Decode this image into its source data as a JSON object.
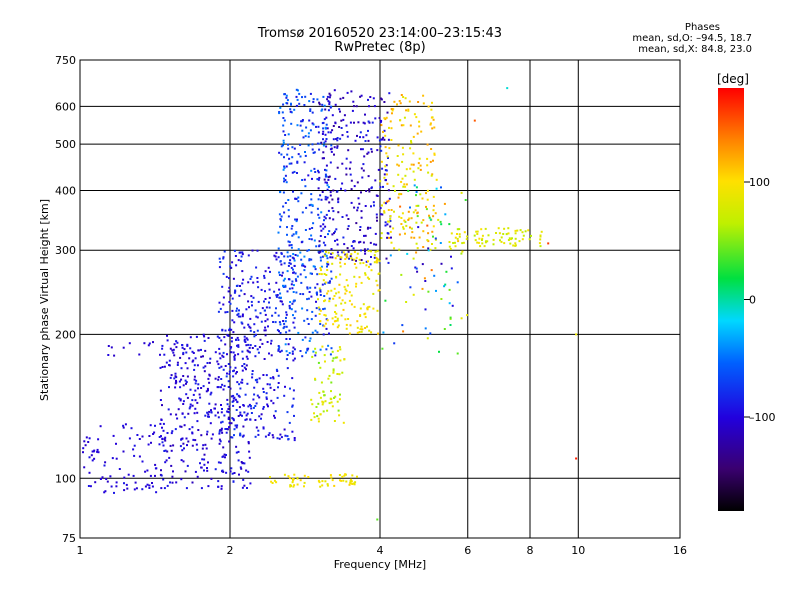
{
  "header": {
    "title_line1": "Tromsø 20160520 23:14:00–23:15:43",
    "title_line2": "RwPretec (8p)"
  },
  "stats": {
    "heading": "Phases",
    "line_o": "mean, sd,O: –94.5, 18.7",
    "line_x": "mean, sd,X:  84.8, 23.0"
  },
  "colorbar": {
    "label": "[deg]",
    "range": [
      -180,
      180
    ],
    "ticks": [
      {
        "value": 100,
        "label": "100"
      },
      {
        "value": 0,
        "label": "0"
      },
      {
        "value": -100,
        "label": "–100"
      }
    ]
  },
  "chart_data": {
    "type": "scatter",
    "xlabel": "Frequency [MHz]",
    "ylabel": "Stationary phase Virtual Height [km]",
    "x_scale": "log",
    "y_scale": "log",
    "xlim": [
      1,
      16
    ],
    "ylim": [
      75,
      750
    ],
    "grid": true,
    "x_ticks": [
      {
        "value": 1,
        "label": "1"
      },
      {
        "value": 2,
        "label": "2"
      },
      {
        "value": 4,
        "label": "4"
      },
      {
        "value": 6,
        "label": "6"
      },
      {
        "value": 8,
        "label": "8"
      },
      {
        "value": 10,
        "label": "10"
      },
      {
        "value": 16,
        "label": "16"
      }
    ],
    "y_ticks": [
      {
        "value": 75,
        "label": "75"
      },
      {
        "value": 100,
        "label": "100"
      },
      {
        "value": 200,
        "label": "200"
      },
      {
        "value": 300,
        "label": "300"
      },
      {
        "value": 400,
        "label": "400"
      },
      {
        "value": 500,
        "label": "500"
      },
      {
        "value": 600,
        "label": "600"
      },
      {
        "value": 750,
        "label": "750"
      }
    ],
    "clusters": [
      {
        "region": "o-low-layer",
        "x": [
          1.0,
          1.45
        ],
        "y": [
          93,
          130
        ],
        "phase": [
          -110,
          -90
        ],
        "count": 90
      },
      {
        "region": "o-spread-lower",
        "x": [
          1.45,
          2.2
        ],
        "y": [
          95,
          200
        ],
        "phase": [
          -115,
          -85
        ],
        "count": 380
      },
      {
        "region": "o-spread-mid",
        "x": [
          1.9,
          2.7
        ],
        "y": [
          120,
          300
        ],
        "phase": [
          -110,
          -70
        ],
        "count": 380
      },
      {
        "region": "o-spread-upper",
        "x": [
          2.5,
          3.2
        ],
        "y": [
          180,
          650
        ],
        "phase": [
          -100,
          -40
        ],
        "count": 380
      },
      {
        "region": "o-upper-band",
        "x": [
          3.0,
          4.2
        ],
        "y": [
          280,
          650
        ],
        "phase": [
          -130,
          -80
        ],
        "count": 300
      },
      {
        "region": "o-sparse-1mhz",
        "x": [
          1.1,
          1.45
        ],
        "y": [
          180,
          195
        ],
        "phase": [
          -110,
          -95
        ],
        "count": 12
      },
      {
        "region": "x-band-200-300",
        "x": [
          3.0,
          4.0
        ],
        "y": [
          200,
          300
        ],
        "phase": [
          80,
          110
        ],
        "count": 160
      },
      {
        "region": "x-band-130-190",
        "x": [
          2.9,
          3.4
        ],
        "y": [
          130,
          190
        ],
        "phase": [
          40,
          100
        ],
        "count": 70
      },
      {
        "region": "x-band-upper",
        "x": [
          4.0,
          5.2
        ],
        "y": [
          300,
          640
        ],
        "phase": [
          70,
          130
        ],
        "count": 180
      },
      {
        "region": "x-low-layer",
        "x": [
          2.4,
          3.6
        ],
        "y": [
          96,
          102
        ],
        "phase": [
          80,
          110
        ],
        "count": 60
      },
      {
        "region": "x-trace-320",
        "x": [
          5.5,
          8.5
        ],
        "y": [
          305,
          335
        ],
        "phase": [
          60,
          100
        ],
        "count": 80
      },
      {
        "region": "mixed-tail",
        "x": [
          4.0,
          6.0
        ],
        "y": [
          180,
          420
        ],
        "phase": [
          -120,
          150
        ],
        "count": 90
      }
    ],
    "isolated_points": [
      {
        "x": 7.2,
        "y": 655,
        "phase": -10
      },
      {
        "x": 6.2,
        "y": 560,
        "phase": 150
      },
      {
        "x": 9.9,
        "y": 200,
        "phase": 90
      },
      {
        "x": 9.9,
        "y": 110,
        "phase": 170
      },
      {
        "x": 3.95,
        "y": 82,
        "phase": 40
      },
      {
        "x": 8.7,
        "y": 310,
        "phase": 160
      }
    ]
  }
}
